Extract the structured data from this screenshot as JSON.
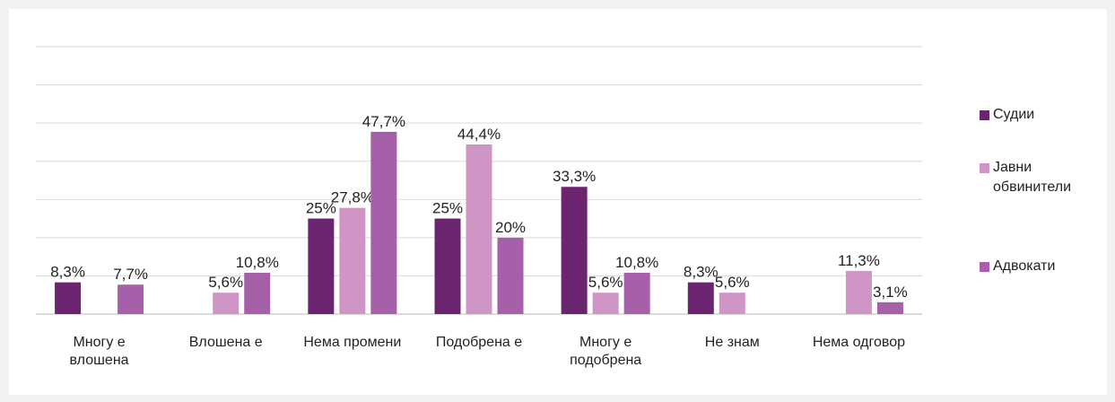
{
  "chart_data": {
    "type": "bar",
    "categories": [
      "Многу е влошена",
      "Влошена е",
      "Нема промени",
      "Подобрена е",
      "Многу е подобрена",
      "Не знам",
      "Нема одговор"
    ],
    "series": [
      {
        "name": "Судии",
        "color": "#6b2470",
        "values": [
          8.3,
          null,
          25,
          25,
          33.3,
          8.3,
          null
        ],
        "value_labels": [
          "8,3%",
          null,
          "25%",
          "25%",
          "33,3%",
          "8,3%",
          null
        ]
      },
      {
        "name": "Јавни обвинители",
        "color": "#cf95c5",
        "values": [
          null,
          5.6,
          27.8,
          44.4,
          5.6,
          5.6,
          11.3
        ],
        "value_labels": [
          null,
          "5,6%",
          "27,8%",
          "44,4%",
          "5,6%",
          "5,6%",
          "11,3%"
        ]
      },
      {
        "name": "Адвокати",
        "color": "#a560a9",
        "values": [
          7.7,
          10.8,
          47.7,
          20,
          10.8,
          null,
          3.1
        ],
        "value_labels": [
          "7,7%",
          "10,8%",
          "47,7%",
          "20%",
          "10,8%",
          null,
          "3,1%"
        ]
      }
    ],
    "ylim": [
      0,
      70
    ],
    "yticks": [
      0,
      10,
      20,
      30,
      40,
      50,
      60,
      70
    ],
    "grid": true,
    "legend": "right"
  }
}
